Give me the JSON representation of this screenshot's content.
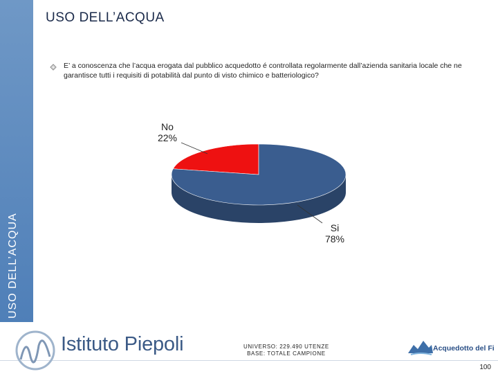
{
  "slide": {
    "title": "USO DELL’ACQUA",
    "side_label": "USO DELL’ACQUA",
    "question": "E’ a conoscenza che l’acqua erogata dal pubblico acquedotto é controllata regolarmente dall’azienda sanitaria locale che ne garantisce  tutti i requisiti di potabilità dal punto di visto chimico e  batteriologico?",
    "page_number": "100"
  },
  "footer": {
    "logo_name": "Istituto Piepoli",
    "universe_line": "UNIVERSO: 229.490 UTENZE",
    "base_line": "BASE: TOTALE CAMPIONE",
    "partner_name": "Acquedotto del Fiora"
  },
  "colors": {
    "sidebar": "#5585bd",
    "si": "#3a5d8f",
    "no": "#ee1111"
  },
  "chart_data": {
    "type": "pie",
    "title": "",
    "slices": [
      {
        "label": "Si",
        "value": 78,
        "display": "78%",
        "color": "#3a5d8f"
      },
      {
        "label": "No",
        "value": 22,
        "display": "22%",
        "color": "#ee1111"
      }
    ]
  }
}
